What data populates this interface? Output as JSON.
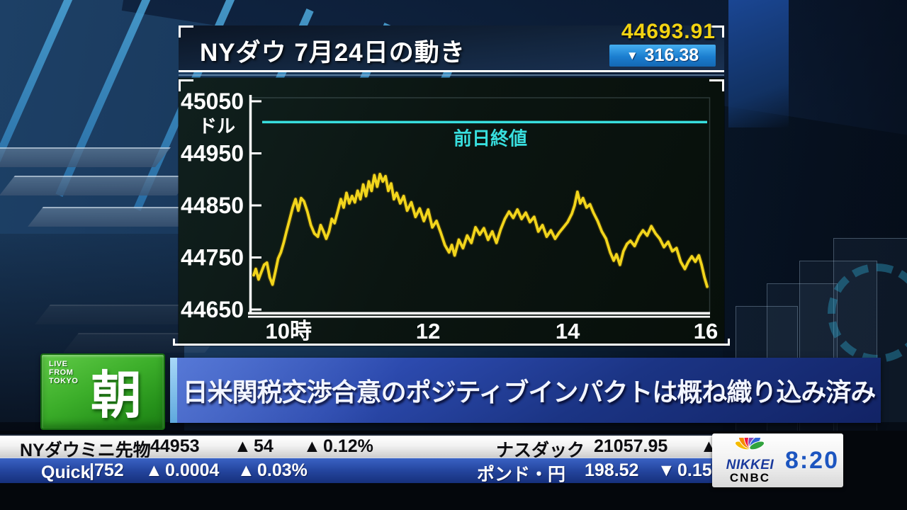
{
  "title_panel": {
    "title": "NYダウ 7月24日の動き",
    "price": "44693.91",
    "change_arrow": "▼",
    "change_value": "316.38"
  },
  "chart_data": {
    "type": "line",
    "title": "NYダウ 7月24日の動き",
    "unit_label": "ドル",
    "ylabel": "ドル",
    "ylim": [
      44650,
      45050
    ],
    "yticks": [
      45050,
      44950,
      44850,
      44750,
      44650
    ],
    "x_range_hours": [
      9.5,
      16
    ],
    "xticks": [
      {
        "hour": 10,
        "label": "10時"
      },
      {
        "hour": 12,
        "label": "12"
      },
      {
        "hour": 14,
        "label": "14"
      },
      {
        "hour": 16,
        "label": "16"
      }
    ],
    "grid": false,
    "legend_position": "none",
    "prev_close": {
      "label": "前日終値",
      "value": 45010
    },
    "line_color": "#f2d51c",
    "prev_close_color": "#38dede",
    "series": [
      {
        "name": "NYダウ",
        "points": [
          [
            9.5,
            44716
          ],
          [
            9.53,
            44728
          ],
          [
            9.57,
            44708
          ],
          [
            9.61,
            44722
          ],
          [
            9.65,
            44736
          ],
          [
            9.69,
            44740
          ],
          [
            9.73,
            44712
          ],
          [
            9.77,
            44698
          ],
          [
            9.81,
            44722
          ],
          [
            9.85,
            44748
          ],
          [
            9.89,
            44760
          ],
          [
            9.93,
            44778
          ],
          [
            9.97,
            44800
          ],
          [
            10.01,
            44820
          ],
          [
            10.06,
            44846
          ],
          [
            10.1,
            44862
          ],
          [
            10.14,
            44840
          ],
          [
            10.18,
            44864
          ],
          [
            10.22,
            44858
          ],
          [
            10.27,
            44838
          ],
          [
            10.32,
            44812
          ],
          [
            10.37,
            44796
          ],
          [
            10.42,
            44790
          ],
          [
            10.46,
            44812
          ],
          [
            10.5,
            44800
          ],
          [
            10.54,
            44786
          ],
          [
            10.58,
            44800
          ],
          [
            10.62,
            44824
          ],
          [
            10.66,
            44816
          ],
          [
            10.7,
            44836
          ],
          [
            10.75,
            44862
          ],
          [
            10.79,
            44846
          ],
          [
            10.83,
            44874
          ],
          [
            10.87,
            44854
          ],
          [
            10.91,
            44868
          ],
          [
            10.95,
            44856
          ],
          [
            10.99,
            44878
          ],
          [
            11.03,
            44862
          ],
          [
            11.07,
            44890
          ],
          [
            11.11,
            44868
          ],
          [
            11.15,
            44896
          ],
          [
            11.19,
            44878
          ],
          [
            11.23,
            44908
          ],
          [
            11.27,
            44886
          ],
          [
            11.31,
            44910
          ],
          [
            11.35,
            44896
          ],
          [
            11.39,
            44906
          ],
          [
            11.43,
            44878
          ],
          [
            11.47,
            44892
          ],
          [
            11.51,
            44862
          ],
          [
            11.55,
            44874
          ],
          [
            11.6,
            44854
          ],
          [
            11.65,
            44868
          ],
          [
            11.7,
            44840
          ],
          [
            11.76,
            44856
          ],
          [
            11.82,
            44828
          ],
          [
            11.88,
            44844
          ],
          [
            11.94,
            44820
          ],
          [
            12.0,
            44842
          ],
          [
            12.06,
            44808
          ],
          [
            12.12,
            44820
          ],
          [
            12.18,
            44798
          ],
          [
            12.24,
            44774
          ],
          [
            12.3,
            44760
          ],
          [
            12.34,
            44774
          ],
          [
            12.38,
            44754
          ],
          [
            12.44,
            44784
          ],
          [
            12.5,
            44768
          ],
          [
            12.56,
            44792
          ],
          [
            12.62,
            44778
          ],
          [
            12.68,
            44808
          ],
          [
            12.74,
            44794
          ],
          [
            12.8,
            44806
          ],
          [
            12.86,
            44784
          ],
          [
            12.92,
            44800
          ],
          [
            12.98,
            44778
          ],
          [
            13.04,
            44804
          ],
          [
            13.1,
            44824
          ],
          [
            13.16,
            44838
          ],
          [
            13.22,
            44826
          ],
          [
            13.28,
            44842
          ],
          [
            13.34,
            44824
          ],
          [
            13.4,
            44836
          ],
          [
            13.46,
            44818
          ],
          [
            13.52,
            44828
          ],
          [
            13.58,
            44800
          ],
          [
            13.64,
            44812
          ],
          [
            13.7,
            44790
          ],
          [
            13.76,
            44802
          ],
          [
            13.82,
            44786
          ],
          [
            13.88,
            44798
          ],
          [
            13.94,
            44808
          ],
          [
            14.0,
            44818
          ],
          [
            14.06,
            44834
          ],
          [
            14.1,
            44850
          ],
          [
            14.14,
            44876
          ],
          [
            14.18,
            44854
          ],
          [
            14.22,
            44864
          ],
          [
            14.27,
            44846
          ],
          [
            14.32,
            44852
          ],
          [
            14.37,
            44836
          ],
          [
            14.43,
            44820
          ],
          [
            14.49,
            44800
          ],
          [
            14.55,
            44786
          ],
          [
            14.61,
            44760
          ],
          [
            14.66,
            44744
          ],
          [
            14.7,
            44756
          ],
          [
            14.75,
            44736
          ],
          [
            14.8,
            44762
          ],
          [
            14.85,
            44776
          ],
          [
            14.9,
            44782
          ],
          [
            14.96,
            44772
          ],
          [
            15.02,
            44790
          ],
          [
            15.08,
            44802
          ],
          [
            15.14,
            44792
          ],
          [
            15.2,
            44810
          ],
          [
            15.26,
            44796
          ],
          [
            15.32,
            44786
          ],
          [
            15.38,
            44770
          ],
          [
            15.44,
            44780
          ],
          [
            15.5,
            44762
          ],
          [
            15.56,
            44768
          ],
          [
            15.62,
            44742
          ],
          [
            15.68,
            44728
          ],
          [
            15.73,
            44742
          ],
          [
            15.78,
            44752
          ],
          [
            15.83,
            44742
          ],
          [
            15.88,
            44754
          ],
          [
            15.92,
            44736
          ],
          [
            15.96,
            44712
          ],
          [
            16.0,
            44694
          ]
        ]
      }
    ]
  },
  "live_badge": {
    "line1": "LIVE",
    "line2": "FROM",
    "line3": "TOKYO",
    "kanji": "朝"
  },
  "headline": {
    "text": "日米関税交渉合意のポジティブインパクトは概ね織り込み済み"
  },
  "ticker": {
    "up_arrow": "▲",
    "down_arrow": "▼",
    "row1": {
      "left_name": "NYダウミニ先物",
      "left_value": "44953",
      "left_change": "54",
      "left_change_pct": "0.12%",
      "right_name": "ナスダック",
      "right_value": "21057.95"
    },
    "row2": {
      "brand": "Quick",
      "left_value": "|752",
      "left_change": "0.0004",
      "left_change_pct": "0.03%",
      "right_name": "ポンド・円",
      "right_value": "198.52",
      "right_change": "0.15"
    }
  },
  "station": {
    "logo_top": "NIKKEI",
    "logo_bottom": "CNBC",
    "time": "8:20"
  },
  "colors": {
    "accent_yellow": "#f2d51c",
    "prev_close_cyan": "#38dede",
    "price_yellow": "#f2d312",
    "badge_blue": "#1b7ed0",
    "up_red": "#e5174a",
    "down_blue": "#3fa9e8",
    "headline_blue": "#1b3484",
    "live_green": "#3cae2a"
  }
}
